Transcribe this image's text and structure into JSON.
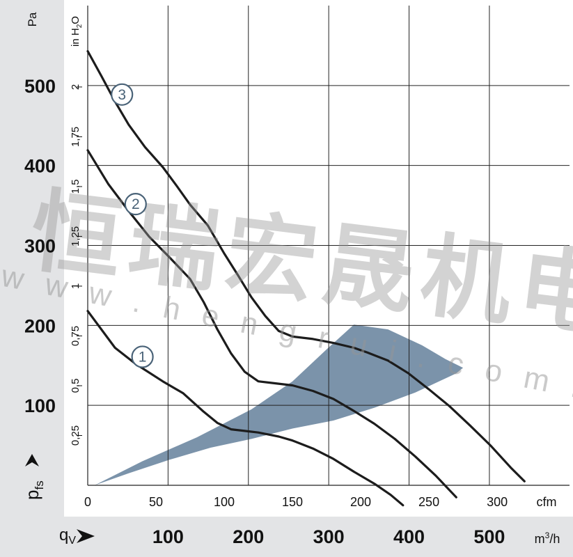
{
  "chart_data": {
    "type": "line",
    "left_axis": {
      "unit": "Pa",
      "ticks": [
        100,
        200,
        300,
        400,
        500
      ],
      "range": [
        0,
        600
      ],
      "symbol": "p",
      "symbol_sub": "fs"
    },
    "right_axis": {
      "unit_main": "in H",
      "unit_sub": "2",
      "unit_tail": "O",
      "ticks": [
        "0,25",
        "0,5",
        "0,75",
        "1",
        "1,25",
        "1,5",
        "1,75",
        "2"
      ],
      "tick_values": [
        0.25,
        0.5,
        0.75,
        1,
        1.25,
        1.5,
        1.75,
        2
      ]
    },
    "x_cfm": {
      "unit": "cfm",
      "ticks": [
        0,
        50,
        100,
        150,
        200,
        250,
        300
      ],
      "range": [
        0,
        353
      ]
    },
    "x_m3h": {
      "unit_main": "m",
      "unit_sup": "3",
      "unit_tail": "/h",
      "ticks": [
        100,
        200,
        300,
        400,
        500
      ],
      "symbol": "q",
      "symbol_sub": "V"
    },
    "series": [
      {
        "name": "1",
        "points": [
          [
            0,
            218
          ],
          [
            20,
            172
          ],
          [
            35,
            152
          ],
          [
            55,
            130
          ],
          [
            70,
            115
          ],
          [
            85,
            92
          ],
          [
            95,
            78
          ],
          [
            105,
            70
          ],
          [
            115,
            68
          ],
          [
            125,
            66
          ],
          [
            140,
            61
          ],
          [
            150,
            56
          ],
          [
            165,
            46
          ],
          [
            180,
            33
          ],
          [
            195,
            17
          ],
          [
            210,
            2
          ],
          [
            222,
            -12
          ],
          [
            231,
            -25
          ]
        ]
      },
      {
        "name": "2",
        "points": [
          [
            0,
            419
          ],
          [
            15,
            377
          ],
          [
            30,
            343
          ],
          [
            45,
            311
          ],
          [
            60,
            285
          ],
          [
            75,
            258
          ],
          [
            85,
            229
          ],
          [
            95,
            195
          ],
          [
            105,
            165
          ],
          [
            115,
            142
          ],
          [
            125,
            130
          ],
          [
            135,
            128
          ],
          [
            150,
            125
          ],
          [
            165,
            118
          ],
          [
            180,
            108
          ],
          [
            195,
            93
          ],
          [
            210,
            77
          ],
          [
            225,
            58
          ],
          [
            240,
            36
          ],
          [
            255,
            12
          ],
          [
            270,
            -15
          ]
        ]
      },
      {
        "name": "3",
        "points": [
          [
            0,
            543
          ],
          [
            10,
            512
          ],
          [
            20,
            480
          ],
          [
            30,
            451
          ],
          [
            42,
            423
          ],
          [
            55,
            398
          ],
          [
            65,
            375
          ],
          [
            75,
            351
          ],
          [
            88,
            325
          ],
          [
            100,
            290
          ],
          [
            110,
            263
          ],
          [
            120,
            235
          ],
          [
            130,
            212
          ],
          [
            140,
            193
          ],
          [
            150,
            186
          ],
          [
            165,
            183
          ],
          [
            180,
            178
          ],
          [
            195,
            172
          ],
          [
            205,
            166
          ],
          [
            220,
            156
          ],
          [
            235,
            140
          ],
          [
            250,
            120
          ],
          [
            265,
            99
          ],
          [
            280,
            75
          ],
          [
            295,
            50
          ],
          [
            310,
            22
          ],
          [
            320,
            5
          ]
        ]
      }
    ],
    "operating_area": {
      "color": "#7b93aa",
      "outer": [
        [
          5,
          0
        ],
        [
          40,
          30
        ],
        [
          80,
          60
        ],
        [
          120,
          95
        ],
        [
          150,
          130
        ],
        [
          175,
          170
        ],
        [
          195,
          201
        ],
        [
          220,
          195
        ],
        [
          245,
          175
        ],
        [
          262,
          158
        ],
        [
          275,
          147
        ]
      ],
      "inner": [
        [
          270,
          140
        ],
        [
          240,
          116
        ],
        [
          210,
          97
        ],
        [
          180,
          81
        ],
        [
          150,
          71
        ],
        [
          120,
          58
        ],
        [
          90,
          47
        ],
        [
          60,
          32
        ],
        [
          30,
          15
        ],
        [
          5,
          0
        ]
      ]
    },
    "watermark": {
      "chars": [
        "恒",
        "瑞",
        "宏",
        "晟",
        "机",
        "电"
      ],
      "url": "w w w . h e n g r u i . c o m . c n"
    }
  }
}
